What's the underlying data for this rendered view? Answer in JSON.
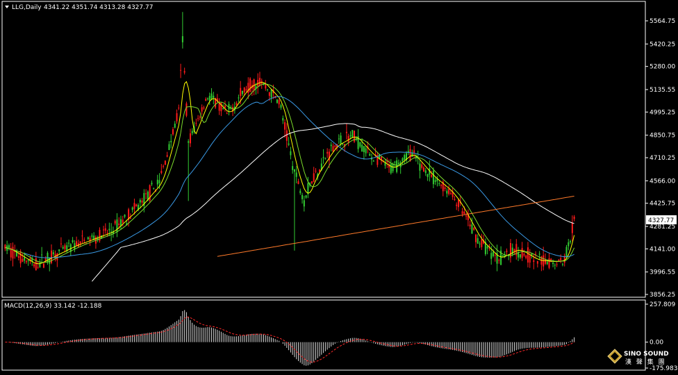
{
  "header": {
    "symbol_label": "LLG,Daily",
    "ohlc_label": "4341.22 4351.74 4313.28 4327.77"
  },
  "price_axis": {
    "ticks": [
      "5564.75",
      "5420.25",
      "5280.00",
      "5135.55",
      "4995.25",
      "4850.75",
      "4710.25",
      "4566.00",
      "4425.75",
      "4281.25",
      "4141.00",
      "3996.55",
      "3856.25"
    ],
    "current_price": "4327.77"
  },
  "macd": {
    "label": "MACD(12,26,9) 33.142 -12.188",
    "ticks": [
      "257.809",
      "0.00",
      "-175.983"
    ]
  },
  "watermark": {
    "brand": "SINO SOUND",
    "chinese": "漢 聲 集 團"
  },
  "colors": {
    "background": "#000000",
    "grid_border": "#ffffff",
    "bull_candle": "#32cd32",
    "bear_candle": "#ff1a1a",
    "ma_fast": "#ffff00",
    "ma_mid": "#7cdc2c",
    "ma_60": "#3a9ae6",
    "ma_120": "#ffffff",
    "ma_250": "#ff7a2a",
    "macd_signal": "#ff2a2a",
    "macd_hist": "#d8d8d8"
  },
  "chart_data": {
    "type": "candlestick",
    "title": "LLG,Daily",
    "ylim": [
      3856.25,
      5640
    ],
    "yticks": [
      5564.75,
      5420.25,
      5280.0,
      5135.55,
      4995.25,
      4850.75,
      4710.25,
      4566.0,
      4425.75,
      4281.25,
      4141.0,
      3996.55,
      3856.25
    ],
    "last_bar": {
      "open": 4341.22,
      "high": 4351.74,
      "low": 4313.28,
      "close": 4327.77
    },
    "close_anchors": [
      [
        0,
        4150
      ],
      [
        15,
        4040
      ],
      [
        35,
        4160
      ],
      [
        55,
        4250
      ],
      [
        70,
        4420
      ],
      [
        80,
        4560
      ],
      [
        90,
        5000
      ],
      [
        92,
        5450
      ],
      [
        95,
        4800
      ],
      [
        105,
        5100
      ],
      [
        115,
        4980
      ],
      [
        125,
        5150
      ],
      [
        132,
        5190
      ],
      [
        142,
        5060
      ],
      [
        150,
        4620
      ],
      [
        155,
        4450
      ],
      [
        160,
        4600
      ],
      [
        170,
        4780
      ],
      [
        180,
        4850
      ],
      [
        190,
        4720
      ],
      [
        200,
        4640
      ],
      [
        210,
        4740
      ],
      [
        220,
        4600
      ],
      [
        230,
        4500
      ],
      [
        235,
        4420
      ],
      [
        245,
        4200
      ],
      [
        255,
        4080
      ],
      [
        265,
        4140
      ],
      [
        275,
        4070
      ],
      [
        285,
        4060
      ],
      [
        290,
        4075
      ],
      [
        295,
        4327.77
      ]
    ],
    "macd_params": "MACD(12,26,9)",
    "macd_values": {
      "main": 33.142,
      "signal": -12.188
    },
    "macd_ylim": [
      -175.983,
      257.809
    ]
  }
}
